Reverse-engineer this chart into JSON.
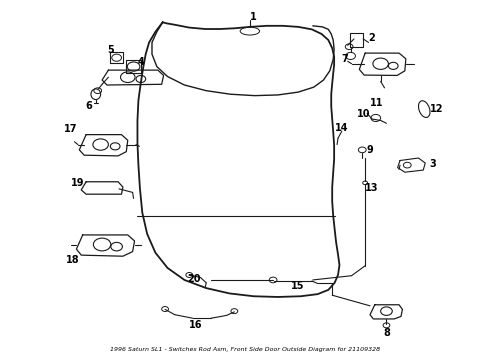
{
  "title": "1996 Saturn SL1 - Switches Rod Asm, Front Side Door Outside Diagram for 21109328",
  "background_color": "#ffffff",
  "line_color": "#1a1a1a",
  "text_color": "#000000",
  "fig_width": 4.9,
  "fig_height": 3.6,
  "dpi": 100,
  "door_outline_x": [
    0.33,
    0.315,
    0.302,
    0.295,
    0.29,
    0.285,
    0.28,
    0.278,
    0.278,
    0.28,
    0.283,
    0.288,
    0.298,
    0.315,
    0.34,
    0.375,
    0.42,
    0.468,
    0.518,
    0.568,
    0.615,
    0.65,
    0.672,
    0.685,
    0.692,
    0.695,
    0.692,
    0.688,
    0.685,
    0.682,
    0.68,
    0.68,
    0.682,
    0.684,
    0.684,
    0.682,
    0.68,
    0.678,
    0.678,
    0.68,
    0.682,
    0.684,
    0.684,
    0.68,
    0.672,
    0.658,
    0.638,
    0.61,
    0.578,
    0.545,
    0.51,
    0.478,
    0.448,
    0.418,
    0.385,
    0.355,
    0.338,
    0.33
  ],
  "door_outline_y": [
    0.945,
    0.918,
    0.888,
    0.855,
    0.818,
    0.775,
    0.725,
    0.668,
    0.605,
    0.542,
    0.478,
    0.408,
    0.348,
    0.295,
    0.252,
    0.218,
    0.195,
    0.18,
    0.172,
    0.17,
    0.172,
    0.178,
    0.19,
    0.21,
    0.232,
    0.26,
    0.29,
    0.325,
    0.362,
    0.4,
    0.44,
    0.48,
    0.52,
    0.558,
    0.598,
    0.638,
    0.672,
    0.708,
    0.742,
    0.772,
    0.8,
    0.825,
    0.848,
    0.872,
    0.895,
    0.912,
    0.925,
    0.932,
    0.935,
    0.935,
    0.932,
    0.928,
    0.926,
    0.926,
    0.93,
    0.938,
    0.942,
    0.945
  ],
  "window_outline_x": [
    0.33,
    0.318,
    0.308,
    0.308,
    0.318,
    0.34,
    0.375,
    0.42,
    0.47,
    0.52,
    0.568,
    0.61,
    0.642,
    0.662,
    0.675,
    0.682,
    0.684,
    0.682,
    0.678,
    0.672,
    0.66,
    0.64
  ],
  "window_outline_y": [
    0.945,
    0.918,
    0.888,
    0.855,
    0.82,
    0.792,
    0.768,
    0.752,
    0.742,
    0.738,
    0.74,
    0.748,
    0.762,
    0.782,
    0.808,
    0.84,
    0.868,
    0.895,
    0.912,
    0.925,
    0.932,
    0.935
  ]
}
